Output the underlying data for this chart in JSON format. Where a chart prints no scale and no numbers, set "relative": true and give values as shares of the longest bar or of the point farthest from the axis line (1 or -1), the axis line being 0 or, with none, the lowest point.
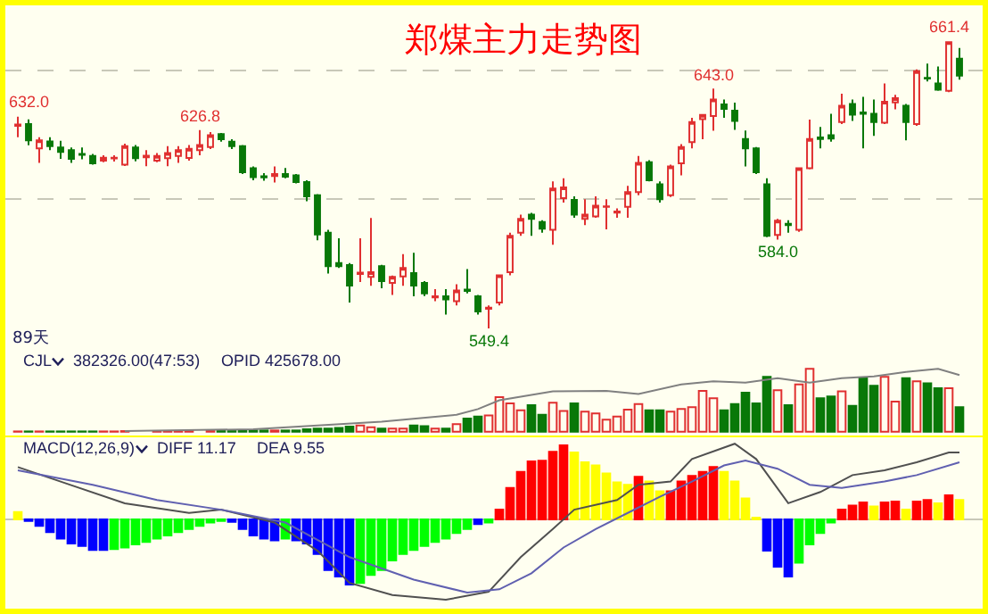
{
  "chart_data": [
    {
      "type": "candlestick",
      "title": "郑煤主力走势图",
      "categories": [
        null,
        null,
        null,
        null,
        null,
        null,
        null,
        null,
        null,
        null,
        null,
        null,
        null,
        null,
        null,
        null,
        null,
        null,
        null,
        null,
        null,
        null,
        null,
        null,
        null,
        null,
        null,
        null,
        null,
        null,
        null,
        null,
        null,
        null,
        null,
        null,
        null,
        null,
        null,
        null,
        null,
        null,
        null,
        null,
        null,
        null,
        null,
        null,
        null,
        null,
        null,
        null,
        null,
        null,
        null,
        null,
        null,
        null,
        null,
        null,
        null,
        null,
        null,
        null,
        null,
        null,
        null,
        null,
        null,
        null,
        null,
        null,
        null,
        null,
        null,
        null,
        null,
        null,
        null,
        null,
        null,
        null,
        null,
        null,
        null,
        null,
        null,
        null,
        null
      ],
      "ohlc": [
        [
          628.5,
          632,
          624,
          629
        ],
        [
          629.2,
          631,
          620.9,
          622.8
        ],
        [
          619.7,
          624,
          614,
          622.8
        ],
        [
          622.4,
          624,
          619,
          620.5
        ],
        [
          620,
          622.6,
          615.6,
          618.3
        ],
        [
          619,
          620,
          614,
          615.6
        ],
        [
          617.5,
          620,
          615.4,
          617.1
        ],
        [
          616.7,
          617.5,
          613.3,
          613.8
        ],
        [
          614.9,
          617,
          614.3,
          616
        ],
        [
          615.7,
          617,
          614.5,
          616
        ],
        [
          613.3,
          621.5,
          612.8,
          620.5
        ],
        [
          620,
          621,
          614.6,
          615.8
        ],
        [
          616.2,
          619,
          612.7,
          616.8
        ],
        [
          614.9,
          617.8,
          614.3,
          616.7
        ],
        [
          615.8,
          620.5,
          612.7,
          617.8
        ],
        [
          616.7,
          620.5,
          614,
          619
        ],
        [
          615.9,
          621,
          614.9,
          619.5
        ],
        [
          619,
          626.8,
          617,
          621
        ],
        [
          620.2,
          626,
          619.4,
          624.8
        ],
        [
          625.2,
          625.7,
          622.3,
          623.2
        ],
        [
          622.3,
          623.2,
          619.4,
          620.5
        ],
        [
          620.5,
          621,
          609.6,
          610.3
        ],
        [
          611.9,
          612.6,
          607.2,
          608.4
        ],
        [
          608.8,
          610,
          607,
          608.3
        ],
        [
          608.9,
          612.6,
          606.3,
          609.6
        ],
        [
          609.6,
          612,
          608,
          608.6
        ],
        [
          609.1,
          609.6,
          606,
          606.5
        ],
        [
          606.5,
          607.2,
          599,
          600.9
        ],
        [
          601.4,
          601.8,
          583.8,
          586
        ],
        [
          586.7,
          587.9,
          570.8,
          573.7
        ],
        [
          574.9,
          584.6,
          573,
          573.7
        ],
        [
          574.1,
          574.9,
          559.5,
          566.1
        ],
        [
          570.6,
          584.6,
          567.5,
          571.1
        ],
        [
          569.5,
          592.5,
          566,
          571.3
        ],
        [
          573.7,
          574.2,
          565,
          567.8
        ],
        [
          567.1,
          570,
          562.4,
          569.5
        ],
        [
          569.7,
          578.4,
          566,
          573
        ],
        [
          571,
          578.9,
          561.9,
          566.1
        ],
        [
          567.1,
          567.8,
          562,
          563
        ],
        [
          561.5,
          564.7,
          560,
          561.9
        ],
        [
          561.9,
          564.7,
          554.8,
          560.7
        ],
        [
          560,
          566.6,
          558.3,
          564.2
        ],
        [
          564.5,
          572.5,
          563,
          564
        ],
        [
          561.9,
          562.4,
          554.8,
          556
        ],
        [
          557,
          558.3,
          549.4,
          557.5
        ],
        [
          559.5,
          570.1,
          558.3,
          570.1
        ],
        [
          571.3,
          586.7,
          570.1,
          585.5
        ],
        [
          586.7,
          593.8,
          585.5,
          592.1
        ],
        [
          593.8,
          594.5,
          585.5,
          592.1
        ],
        [
          590.9,
          591.6,
          586.7,
          588.3
        ],
        [
          587.9,
          606.8,
          582,
          604
        ],
        [
          600.2,
          608,
          598.5,
          604.4
        ],
        [
          599.5,
          600.9,
          592.6,
          593.8
        ],
        [
          592.1,
          599.8,
          589.7,
          593.8
        ],
        [
          593.1,
          600.9,
          592.6,
          597.3
        ],
        [
          596.8,
          599.8,
          588,
          597
        ],
        [
          594.6,
          596.2,
          592.6,
          595
        ],
        [
          596.8,
          605,
          592.6,
          602.6
        ],
        [
          602.6,
          616.7,
          601.4,
          614
        ],
        [
          614.3,
          615,
          606.8,
          607.2
        ],
        [
          605.6,
          606.8,
          598.5,
          599.8
        ],
        [
          601.4,
          613.3,
          600.7,
          612.6
        ],
        [
          613.8,
          621.3,
          609.1,
          620.2
        ],
        [
          622.1,
          631.6,
          619.7,
          629.9
        ],
        [
          631.1,
          632.7,
          623.2,
          632.7
        ],
        [
          632.3,
          643,
          626.5,
          638.7
        ],
        [
          636.8,
          638.7,
          631.6,
          635.1
        ],
        [
          634.4,
          637.5,
          626.9,
          630.4
        ],
        [
          623.3,
          626.6,
          612.6,
          619.7
        ],
        [
          619.7,
          620.2,
          609.6,
          610.3
        ],
        [
          605.6,
          608,
          585,
          585.5
        ],
        [
          585.9,
          592.1,
          584,
          591.4
        ],
        [
          590.2,
          591.6,
          586.7,
          589.7
        ],
        [
          587.9,
          612,
          587.1,
          611.9
        ],
        [
          611.9,
          630.9,
          611.5,
          623.3
        ],
        [
          623.9,
          628,
          619.7,
          623.3
        ],
        [
          624.8,
          633.2,
          622.3,
          623.5
        ],
        [
          629.9,
          641,
          629.2,
          636.3
        ],
        [
          637,
          638.7,
          630.4,
          632.8
        ],
        [
          633.7,
          639.8,
          619.7,
          633.2
        ],
        [
          633.2,
          638.7,
          624.5,
          629.9
        ],
        [
          629.7,
          645,
          629.2,
          637.9
        ],
        [
          637.6,
          640.6,
          634.9,
          639.3
        ],
        [
          636.3,
          637,
          622.8,
          629.9
        ],
        [
          629.2,
          650.5,
          628.5,
          649.8
        ],
        [
          647.2,
          652.8,
          645.8,
          646.9
        ],
        [
          645,
          651.6,
          642.1,
          642.6
        ],
        [
          642.1,
          661.4,
          641.6,
          661.1
        ],
        [
          654.7,
          658.9,
          646.5,
          648.1
        ]
      ],
      "colors": [
        "#e03030",
        "#087808",
        "#e03030",
        "#087808",
        "#087808",
        "#087808",
        "#087808",
        "#087808",
        "#e03030",
        "#e03030",
        "#e03030",
        "#087808",
        "#e03030",
        "#e03030",
        "#e03030",
        "#e03030",
        "#e03030",
        "#e03030",
        "#e03030",
        "#087808",
        "#087808",
        "#087808",
        "#087808",
        "#087808",
        "#e03030",
        "#087808",
        "#087808",
        "#087808",
        "#087808",
        "#087808",
        "#087808",
        "#087808",
        "#e03030",
        "#e03030",
        "#087808",
        "#e03030",
        "#e03030",
        "#087808",
        "#087808",
        "#e03030",
        "#087808",
        "#e03030",
        "#087808",
        "#087808",
        "#e03030",
        "#e03030",
        "#e03030",
        "#e03030",
        "#087808",
        "#087808",
        "#e03030",
        "#e03030",
        "#087808",
        "#e03030",
        "#e03030",
        "#e03030",
        "#e03030",
        "#e03030",
        "#e03030",
        "#087808",
        "#087808",
        "#e03030",
        "#e03030",
        "#e03030",
        "#e03030",
        "#e03030",
        "#087808",
        "#087808",
        "#087808",
        "#087808",
        "#087808",
        "#e03030",
        "#087808",
        "#e03030",
        "#e03030",
        "#087808",
        "#087808",
        "#e03030",
        "#087808",
        "#087808",
        "#087808",
        "#e03030",
        "#e03030",
        "#087808",
        "#e03030",
        "#087808",
        "#087808",
        "#e03030",
        "#087808"
      ],
      "ylim": [
        541,
        675.5
      ],
      "yticks": [
        {
          "value": 600,
          "label": null
        },
        {
          "value": 650,
          "label": null
        }
      ],
      "grid": "y",
      "annotations": [
        "89天",
        {
          "text": "632.0",
          "y": 632
        },
        {
          "text": "626.8",
          "y": 626.8
        },
        {
          "text": "549.4",
          "y": 549.4
        },
        {
          "text": "643.0",
          "y": 643
        },
        {
          "text": "584.0",
          "y": 584
        },
        {
          "text": "661.4",
          "y": 661.4
        }
      ]
    },
    {
      "type": "bar",
      "relative": true,
      "categories": [
        null,
        null,
        null,
        null,
        null,
        null,
        null,
        null,
        null,
        null,
        null,
        null,
        null,
        null,
        null,
        null,
        null,
        null,
        null,
        null,
        null,
        null,
        null,
        null,
        null,
        null,
        null,
        null,
        null,
        null,
        null,
        null,
        null,
        null,
        null,
        null,
        null,
        null,
        null,
        null,
        null,
        null,
        null,
        null,
        null,
        null,
        null,
        null,
        null,
        null,
        null,
        null,
        null,
        null,
        null,
        null,
        null,
        null,
        null,
        null,
        null,
        null,
        null,
        null,
        null,
        null,
        null,
        null,
        null,
        null,
        null,
        null,
        null,
        null,
        null,
        null,
        null,
        null,
        null,
        null,
        null,
        null,
        null,
        null,
        null,
        null,
        null,
        null,
        null
      ],
      "series": [
        {
          "type": "bar",
          "values": [
            0.005,
            0.005,
            0.005,
            0.005,
            0.005,
            0.005,
            0.005,
            0.005,
            0.005,
            0.005,
            0.01,
            null,
            null,
            0.01,
            0.01,
            0.01,
            0.01,
            null,
            0.01,
            0.01,
            0.01,
            0.02,
            0.02,
            0.02,
            0.02,
            0.02,
            0.02,
            0.04,
            0.05,
            0.05,
            0.06,
            0.08,
            0.1,
            0.07,
            0.05,
            0.05,
            0.05,
            0.1,
            0.09,
            0.05,
            0.05,
            0.12,
            0.21,
            0.24,
            0.26,
            0.55,
            0.45,
            0.34,
            0.42,
            0.27,
            0.46,
            0.33,
            0.45,
            0.32,
            0.29,
            0.19,
            0.24,
            0.35,
            0.44,
            0.34,
            0.34,
            0.32,
            0.36,
            0.39,
            0.65,
            0.53,
            0.34,
            0.44,
            0.62,
            0.45,
            0.87,
            0.66,
            0.42,
            0.75,
            1,
            0.53,
            0.56,
            0.64,
            0.41,
            0.85,
            0.73,
            0.87,
            0.48,
            0.85,
            0.8,
            0.77,
            0.69,
            0.69,
            0.39
          ],
          "colors": [
            "#e03030",
            "#087808",
            "#e03030",
            "#087808",
            "#087808",
            "#087808",
            "#087808",
            "#087808",
            "#e03030",
            "#e03030",
            "#e03030",
            "#087808",
            "#e03030",
            "#e03030",
            "#e03030",
            "#e03030",
            "#e03030",
            "#e03030",
            "#e03030",
            "#087808",
            "#087808",
            "#087808",
            "#087808",
            "#087808",
            "#e03030",
            "#087808",
            "#087808",
            "#087808",
            "#087808",
            "#087808",
            "#087808",
            "#087808",
            "#e03030",
            "#e03030",
            "#087808",
            "#e03030",
            "#e03030",
            "#087808",
            "#087808",
            "#e03030",
            "#087808",
            "#e03030",
            "#087808",
            "#087808",
            "#e03030",
            "#e03030",
            "#e03030",
            "#e03030",
            "#087808",
            "#087808",
            "#e03030",
            "#e03030",
            "#087808",
            "#e03030",
            "#e03030",
            "#e03030",
            "#e03030",
            "#e03030",
            "#e03030",
            "#087808",
            "#087808",
            "#e03030",
            "#e03030",
            "#e03030",
            "#e03030",
            "#e03030",
            "#087808",
            "#087808",
            "#087808",
            "#087808",
            "#087808",
            "#e03030",
            "#087808",
            "#e03030",
            "#e03030",
            "#087808",
            "#087808",
            "#e03030",
            "#087808",
            "#087808",
            "#087808",
            "#e03030",
            "#e03030",
            "#087808",
            "#e03030",
            "#087808",
            "#087808",
            "#e03030",
            "#087808"
          ]
        },
        {
          "type": "line",
          "color": "#808080",
          "values": [
            null,
            null,
            null,
            null,
            null,
            null,
            null,
            null,
            null,
            null,
            0.01,
            null,
            null,
            null,
            null,
            null,
            null,
            null,
            null,
            null,
            null,
            null,
            0.04,
            null,
            null,
            null,
            null,
            null,
            null,
            null,
            null,
            null,
            null,
            null,
            0.16,
            null,
            null,
            null,
            null,
            null,
            null,
            0.27,
            null,
            0.36,
            null,
            0.5,
            null,
            null,
            null,
            null,
            0.64,
            null,
            null,
            null,
            null,
            0.65,
            null,
            null,
            0.6,
            null,
            null,
            null,
            0.75,
            null,
            null,
            0.8,
            null,
            null,
            0.78,
            null,
            null,
            0.85,
            null,
            null,
            0.78,
            null,
            null,
            0.85,
            null,
            null,
            0.88,
            null,
            null,
            0.95,
            null,
            null,
            1,
            null,
            0.9
          ]
        }
      ],
      "annotations": [
        "CJL",
        "382326.00(47:53)",
        "OPID 425678.00"
      ]
    },
    {
      "type": "bar",
      "relative": true,
      "categories": [
        null,
        null,
        null,
        null,
        null,
        null,
        null,
        null,
        null,
        null,
        null,
        null,
        null,
        null,
        null,
        null,
        null,
        null,
        null,
        null,
        null,
        null,
        null,
        null,
        null,
        null,
        null,
        null,
        null,
        null,
        null,
        null,
        null,
        null,
        null,
        null,
        null,
        null,
        null,
        null,
        null,
        null,
        null,
        null,
        null,
        null,
        null,
        null,
        null,
        null,
        null,
        null,
        null,
        null,
        null,
        null,
        null,
        null,
        null,
        null,
        null,
        null,
        null,
        null,
        null,
        null,
        null,
        null,
        null,
        null,
        null,
        null,
        null,
        null,
        null,
        null,
        null,
        null,
        null,
        null,
        null,
        null,
        null,
        null,
        null,
        null,
        null,
        null,
        null
      ],
      "series": [
        {
          "type": "bar",
          "values": [
            0.09,
            -0.02,
            -0.08,
            -0.16,
            -0.24,
            -0.3,
            -0.33,
            -0.38,
            -0.38,
            -0.37,
            -0.35,
            -0.31,
            -0.28,
            -0.24,
            -0.2,
            -0.16,
            -0.12,
            -0.08,
            -0.04,
            -0.02,
            -0.03,
            -0.12,
            -0.2,
            -0.24,
            -0.26,
            -0.24,
            -0.26,
            -0.3,
            -0.43,
            -0.63,
            -0.71,
            -0.81,
            -0.79,
            -0.69,
            -0.63,
            -0.51,
            -0.43,
            -0.38,
            -0.33,
            -0.28,
            -0.24,
            -0.17,
            -0.12,
            -0.06,
            -0.04,
            0.12,
            0.39,
            0.59,
            0.72,
            0.73,
            0.84,
            0.92,
            0.83,
            0.71,
            0.67,
            0.57,
            0.46,
            0.43,
            0.53,
            0.47,
            0.35,
            0.35,
            0.47,
            0.54,
            0.59,
            0.65,
            0.59,
            0.47,
            0.26,
            0.02,
            -0.39,
            -0.59,
            -0.71,
            -0.54,
            -0.31,
            -0.17,
            -0.04,
            0.12,
            0.17,
            0.21,
            0.16,
            0.21,
            0.22,
            0.12,
            0.22,
            0.24,
            0.2,
            0.3,
            0.24
          ],
          "colors": [
            "#ffff00",
            "#0000ff",
            "#0000ff",
            "#0000ff",
            "#0000ff",
            "#0000ff",
            "#0000ff",
            "#0000ff",
            "#0000ff",
            "#00ff00",
            "#00ff00",
            "#00ff00",
            "#00ff00",
            "#00ff00",
            "#00ff00",
            "#00ff00",
            "#00ff00",
            "#00ff00",
            "#00ff00",
            "#00ff00",
            "#0000ff",
            "#0000ff",
            "#0000ff",
            "#0000ff",
            "#0000ff",
            "#00ff00",
            "#0000ff",
            "#0000ff",
            "#0000ff",
            "#0000ff",
            "#0000ff",
            "#0000ff",
            "#00ff00",
            "#00ff00",
            "#00ff00",
            "#00ff00",
            "#00ff00",
            "#00ff00",
            "#00ff00",
            "#00ff00",
            "#00ff00",
            "#00ff00",
            "#00ff00",
            "#0000ff",
            "#00ff00",
            "#ff0000",
            "#ff0000",
            "#ff0000",
            "#ff0000",
            "#ff0000",
            "#ff0000",
            "#ff0000",
            "#ffff00",
            "#ffff00",
            "#ffff00",
            "#ffff00",
            "#ffff00",
            "#ffff00",
            "#ff0000",
            "#ffff00",
            "#ffff00",
            "#ff0000",
            "#ff0000",
            "#ff0000",
            "#ff0000",
            "#ff0000",
            "#ffff00",
            "#ffff00",
            "#ffff00",
            "#ffff00",
            "#0000ff",
            "#0000ff",
            "#0000ff",
            "#00ff00",
            "#00ff00",
            "#00ff00",
            "#00ff00",
            "#ff0000",
            "#ff0000",
            "#ff0000",
            "#ffff00",
            "#ff0000",
            "#ff0000",
            "#ffff00",
            "#ff0000",
            "#ff0000",
            "#ffff00",
            "#ff0000",
            "#ffff00"
          ]
        },
        {
          "type": "line",
          "color": "#505050",
          "values": [
            0.65,
            null,
            null,
            null,
            0.47,
            null,
            null,
            null,
            null,
            null,
            0.2,
            null,
            null,
            null,
            null,
            null,
            0.08,
            null,
            null,
            0.12,
            null,
            null,
            null,
            null,
            -0.04,
            null,
            null,
            null,
            -0.39,
            null,
            null,
            -0.79,
            null,
            null,
            null,
            -0.94,
            null,
            null,
            null,
            null,
            -1,
            null,
            null,
            null,
            -0.9,
            null,
            null,
            -0.47,
            null,
            null,
            -0.12,
            null,
            0.12,
            null,
            null,
            null,
            0.24,
            null,
            0.43,
            null,
            null,
            0.47,
            null,
            0.75,
            null,
            null,
            null,
            0.94,
            null,
            0.75,
            null,
            null,
            0.2,
            null,
            null,
            0.34,
            null,
            null,
            0.55,
            null,
            null,
            0.61,
            null,
            null,
            0.71,
            null,
            null,
            0.83,
            0.83
          ]
        },
        {
          "type": "line",
          "color": "#6060b0",
          "values": [
            0.61,
            null,
            null,
            null,
            null,
            null,
            null,
            0.43,
            null,
            null,
            null,
            null,
            null,
            0.24,
            null,
            null,
            null,
            null,
            null,
            0.12,
            null,
            null,
            null,
            null,
            null,
            -0.04,
            null,
            null,
            null,
            null,
            null,
            -0.47,
            null,
            null,
            null,
            null,
            null,
            -0.75,
            null,
            null,
            null,
            null,
            -0.91,
            null,
            null,
            -0.87,
            null,
            null,
            -0.67,
            null,
            null,
            -0.35,
            null,
            null,
            -0.12,
            null,
            null,
            0.08,
            null,
            null,
            0.28,
            null,
            null,
            0.47,
            null,
            null,
            0.67,
            null,
            0.73,
            null,
            null,
            0.63,
            null,
            null,
            0.43,
            null,
            null,
            0.39,
            null,
            null,
            null,
            0.47,
            null,
            null,
            0.55,
            null,
            null,
            null,
            0.71
          ]
        }
      ],
      "annotations": [
        "MACD(12,26,9)",
        "DIFF 11.17",
        "DEA 9.55"
      ]
    }
  ]
}
